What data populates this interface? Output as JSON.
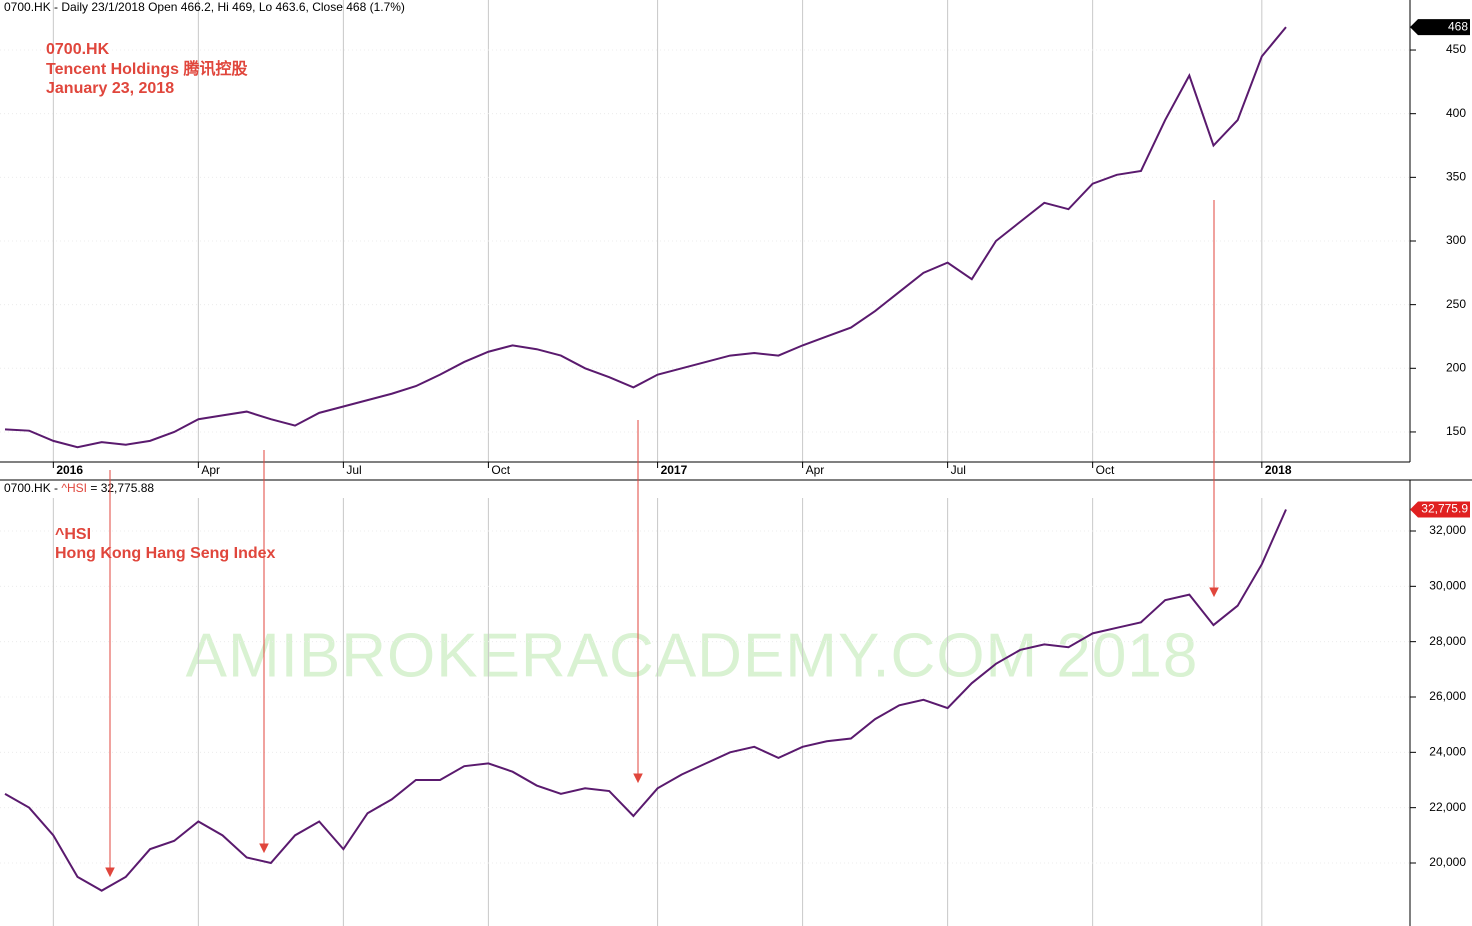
{
  "chart_data": [
    {
      "type": "line",
      "title": "0700.HK - Daily 23/1/2018 Open 466.2, Hi 469, Lo 463.6, Close 468 (1.7%)",
      "annotations": [
        "0700.HK",
        "Tencent Holdings 腾讯控股",
        "January 23, 2018"
      ],
      "categories": [
        null,
        null,
        "2016",
        null,
        null,
        null,
        null,
        null,
        "Apr",
        null,
        null,
        null,
        null,
        null,
        "Jul",
        null,
        null,
        null,
        null,
        null,
        "Oct",
        null,
        null,
        null,
        null,
        null,
        null,
        "2017",
        null,
        null,
        null,
        null,
        null,
        "Apr",
        null,
        null,
        null,
        null,
        null,
        "Jul",
        null,
        null,
        null,
        null,
        null,
        "Oct",
        null,
        null,
        null,
        null,
        null,
        null,
        "2018",
        null
      ],
      "series": [
        {
          "name": "0700.HK",
          "color": "#5a1a6e",
          "values": [
            152,
            151,
            143,
            138,
            142,
            140,
            143,
            150,
            160,
            163,
            166,
            160,
            155,
            165,
            170,
            175,
            180,
            186,
            195,
            205,
            213,
            218,
            215,
            210,
            200,
            193,
            185,
            195,
            200,
            205,
            210,
            212,
            210,
            218,
            225,
            232,
            245,
            260,
            275,
            283,
            270,
            300,
            315,
            330,
            325,
            345,
            352,
            355,
            395,
            430,
            375,
            395,
            445,
            468
          ]
        }
      ],
      "ylim": [
        126.4,
        489.3
      ],
      "yticks": [
        150,
        200,
        250,
        300,
        350,
        400,
        450
      ],
      "grid": true
    },
    {
      "type": "line",
      "title": [
        "0700.HK - ",
        "^HSI",
        " = 32,775.88"
      ],
      "annotations": [
        "^HSI",
        "Hong Kong Hang Seng Index"
      ],
      "watermark": "AMIBROKERACADEMY.COM  2018",
      "last_value_label": "32,775.9",
      "categories": [
        null,
        null,
        "2016",
        null,
        null,
        null,
        null,
        null,
        "Apr",
        null,
        null,
        null,
        null,
        null,
        "Jul",
        null,
        null,
        null,
        null,
        null,
        "Oct",
        null,
        null,
        null,
        null,
        null,
        null,
        "2017",
        null,
        null,
        null,
        null,
        null,
        "Apr",
        null,
        null,
        null,
        null,
        null,
        "Jul",
        null,
        null,
        null,
        null,
        null,
        "Oct",
        null,
        null,
        null,
        null,
        null,
        null,
        "2018",
        null
      ],
      "series": [
        {
          "name": "^HSI",
          "color": "#5a1a6e",
          "values": [
            22500,
            22000,
            21000,
            19500,
            19000,
            19500,
            20500,
            20800,
            21500,
            21000,
            20200,
            20000,
            21000,
            21500,
            20500,
            21800,
            22300,
            23000,
            23000,
            23500,
            23600,
            23300,
            22800,
            22500,
            22700,
            22600,
            21700,
            22700,
            23200,
            23600,
            24000,
            24200,
            23800,
            24200,
            24400,
            24500,
            25200,
            25700,
            25900,
            25600,
            26500,
            27200,
            27700,
            27900,
            27800,
            28300,
            28500,
            28700,
            29500,
            29700,
            28600,
            29300,
            30800,
            32775.88
          ]
        }
      ],
      "ylim": [
        17723,
        33843
      ],
      "yticks": [
        {
          "value": 20000,
          "label": "20,000"
        },
        {
          "value": 22000,
          "label": "22,000"
        },
        {
          "value": 24000,
          "label": "24,000"
        },
        {
          "value": 26000,
          "label": "26,000"
        },
        {
          "value": 28000,
          "label": "28,000"
        },
        {
          "value": 30000,
          "label": "30,000"
        },
        {
          "value": 32000,
          "label": "32,000"
        }
      ],
      "grid": true
    }
  ]
}
